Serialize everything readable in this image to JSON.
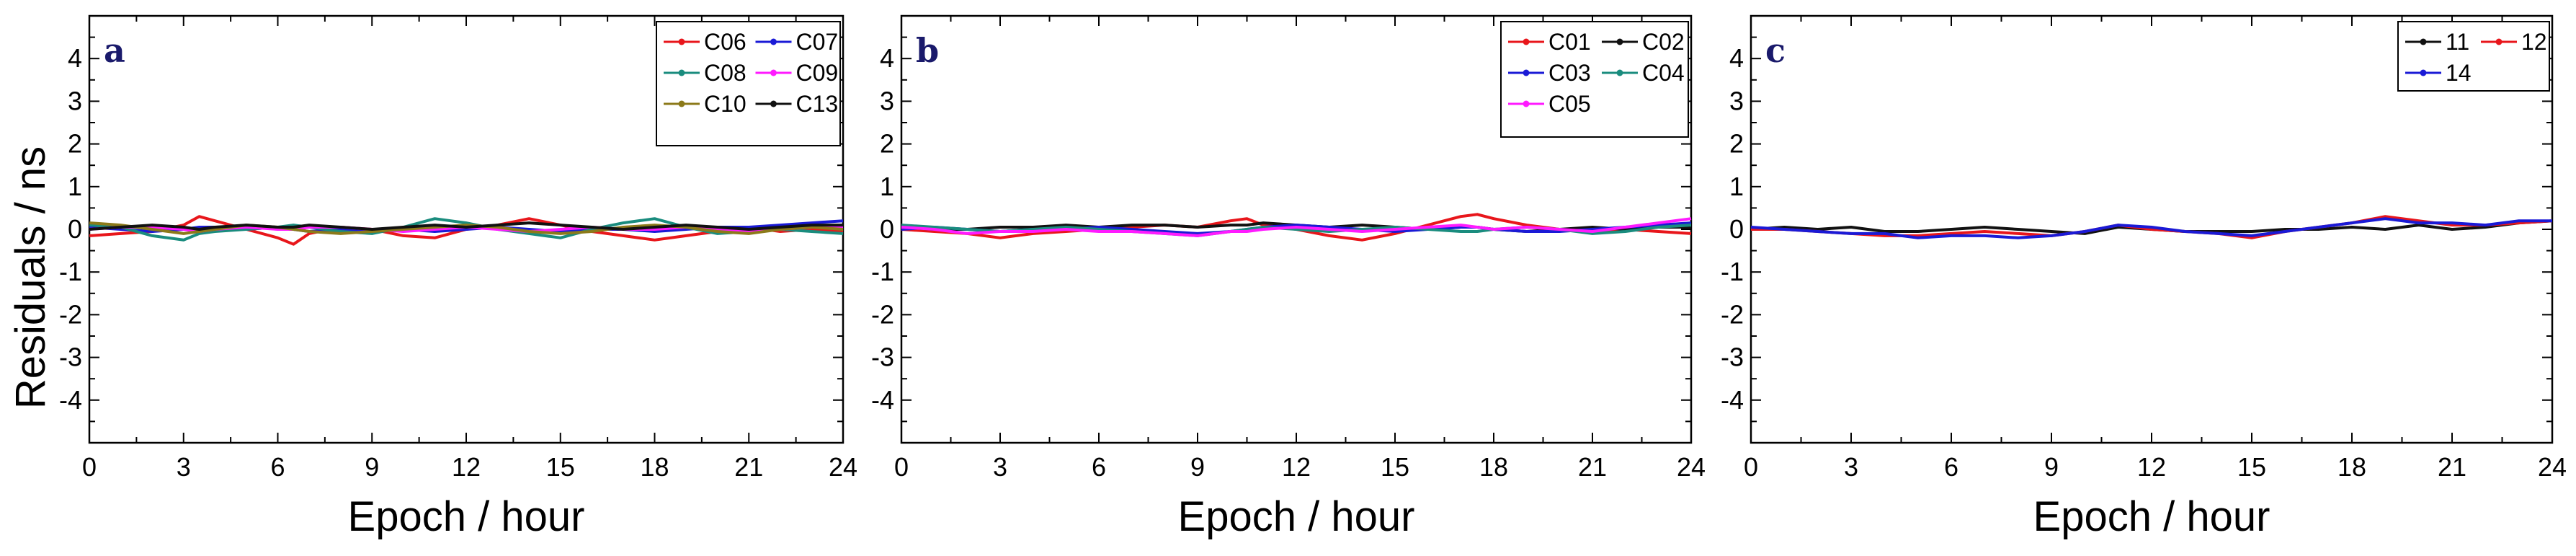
{
  "figure": {
    "ylabel": "Residuals / ns",
    "xlabel": "Epoch / hour"
  },
  "chart_data": [
    {
      "type": "line",
      "panel_label": "a",
      "xlabel": "Epoch / hour",
      "ylabel": "Residuals / ns",
      "xlim": [
        0,
        24
      ],
      "ylim": [
        -5,
        5
      ],
      "xticks": [
        "0",
        "3",
        "6",
        "9",
        "12",
        "15",
        "18",
        "21",
        "24"
      ],
      "yticks": [
        "-4",
        "-3",
        "-2",
        "-1",
        "0",
        "1",
        "2",
        "3",
        "4"
      ],
      "legend_placement": "top-right",
      "legend_columns": 2,
      "x": [
        0,
        1,
        2,
        3,
        3.5,
        4,
        5,
        6,
        6.5,
        7,
        8,
        9,
        10,
        11,
        12,
        13,
        14,
        15,
        16,
        17,
        18,
        19,
        20,
        21,
        22,
        23,
        24
      ],
      "series": [
        {
          "name": "C06",
          "color": "#e8161b",
          "values": [
            -0.15,
            -0.1,
            -0.05,
            0.1,
            0.3,
            0.2,
            0.0,
            -0.2,
            -0.35,
            -0.1,
            0.05,
            0.0,
            -0.15,
            -0.2,
            0.0,
            0.1,
            0.25,
            0.1,
            -0.05,
            -0.15,
            -0.25,
            -0.15,
            -0.05,
            0.05,
            -0.05,
            0.0,
            -0.05
          ]
        },
        {
          "name": "C07",
          "color": "#1a1ad6",
          "values": [
            0.05,
            0.0,
            -0.05,
            0.0,
            0.05,
            0.05,
            0.0,
            0.05,
            0.0,
            -0.05,
            0.0,
            -0.05,
            0.0,
            -0.05,
            0.0,
            0.05,
            0.0,
            -0.05,
            0.0,
            0.0,
            -0.05,
            0.0,
            0.05,
            0.05,
            0.1,
            0.15,
            0.2
          ]
        },
        {
          "name": "C08",
          "color": "#1a8c7e",
          "values": [
            0.1,
            0.05,
            -0.15,
            -0.25,
            -0.1,
            -0.05,
            0.0,
            0.05,
            0.1,
            0.05,
            -0.05,
            -0.1,
            0.05,
            0.25,
            0.15,
            0.0,
            -0.1,
            -0.2,
            0.0,
            0.15,
            0.25,
            0.05,
            -0.1,
            -0.05,
            0.0,
            -0.05,
            -0.1
          ]
        },
        {
          "name": "C09",
          "color": "#ff1aff",
          "values": [
            0.0,
            0.05,
            0.05,
            0.0,
            -0.05,
            0.0,
            0.05,
            0.0,
            0.0,
            0.05,
            0.05,
            0.0,
            -0.05,
            0.0,
            0.05,
            0.0,
            -0.05,
            0.0,
            0.05,
            0.0,
            0.0,
            0.05,
            0.0,
            -0.05,
            0.0,
            0.05,
            0.05
          ]
        },
        {
          "name": "C10",
          "color": "#8c7a1a",
          "values": [
            0.15,
            0.1,
            0.0,
            -0.1,
            -0.05,
            0.0,
            0.1,
            0.05,
            0.0,
            -0.05,
            -0.1,
            -0.05,
            0.0,
            0.05,
            0.1,
            0.05,
            -0.05,
            -0.1,
            -0.05,
            0.05,
            0.1,
            0.05,
            -0.05,
            -0.1,
            0.0,
            0.05,
            0.0
          ]
        },
        {
          "name": "C13",
          "color": "#111111",
          "values": [
            0.0,
            0.05,
            0.1,
            0.05,
            0.0,
            0.05,
            0.1,
            0.05,
            0.05,
            0.1,
            0.05,
            0.0,
            0.05,
            0.1,
            0.05,
            0.1,
            0.15,
            0.1,
            0.05,
            0.0,
            0.05,
            0.1,
            0.05,
            0.0,
            0.05,
            0.1,
            0.1
          ]
        }
      ]
    },
    {
      "type": "line",
      "panel_label": "b",
      "xlabel": "Epoch / hour",
      "ylabel": "Residuals / ns",
      "xlim": [
        0,
        24
      ],
      "ylim": [
        -5,
        5
      ],
      "xticks": [
        "0",
        "3",
        "6",
        "9",
        "12",
        "15",
        "18",
        "21",
        "24"
      ],
      "yticks": [
        "-4",
        "-3",
        "-2",
        "-1",
        "0",
        "1",
        "2",
        "3",
        "4"
      ],
      "legend_placement": "top-right",
      "legend_columns": 2,
      "x": [
        0,
        1,
        2,
        3,
        4,
        5,
        6,
        7,
        8,
        9,
        10,
        10.5,
        11,
        12,
        13,
        14,
        15,
        16,
        17,
        17.5,
        18,
        19,
        20,
        21,
        22,
        23,
        24
      ],
      "series": [
        {
          "name": "C01",
          "color": "#e8161b",
          "values": [
            0.0,
            -0.05,
            -0.1,
            -0.2,
            -0.1,
            -0.05,
            0.0,
            0.05,
            0.1,
            0.05,
            0.2,
            0.25,
            0.1,
            0.0,
            -0.15,
            -0.25,
            -0.1,
            0.1,
            0.3,
            0.35,
            0.25,
            0.1,
            0.0,
            -0.05,
            0.0,
            -0.05,
            -0.1
          ]
        },
        {
          "name": "C02",
          "color": "#111111",
          "values": [
            0.05,
            0.0,
            0.0,
            0.05,
            0.05,
            0.1,
            0.05,
            0.1,
            0.1,
            0.05,
            0.1,
            0.1,
            0.15,
            0.1,
            0.05,
            0.1,
            0.05,
            0.0,
            0.05,
            0.05,
            0.0,
            -0.05,
            0.0,
            0.05,
            0.0,
            0.05,
            0.05
          ]
        },
        {
          "name": "C03",
          "color": "#1a1ad6",
          "values": [
            0.0,
            0.05,
            0.0,
            -0.05,
            0.0,
            0.0,
            0.05,
            0.0,
            -0.05,
            -0.1,
            -0.05,
            0.0,
            0.05,
            0.1,
            0.05,
            0.0,
            -0.05,
            0.0,
            0.05,
            0.05,
            0.0,
            -0.05,
            -0.05,
            0.0,
            0.05,
            0.1,
            0.15
          ]
        },
        {
          "name": "C04",
          "color": "#1a8c7e",
          "values": [
            0.1,
            0.05,
            0.0,
            -0.05,
            0.0,
            0.05,
            0.0,
            -0.05,
            -0.1,
            -0.15,
            -0.05,
            0.0,
            0.05,
            0.0,
            -0.05,
            0.0,
            0.05,
            0.0,
            -0.05,
            -0.05,
            0.0,
            0.05,
            0.0,
            -0.1,
            -0.05,
            0.05,
            0.1
          ]
        },
        {
          "name": "C05",
          "color": "#ff1aff",
          "values": [
            0.05,
            0.0,
            -0.1,
            -0.05,
            -0.05,
            0.0,
            -0.05,
            -0.05,
            -0.1,
            -0.15,
            -0.05,
            -0.05,
            0.0,
            0.05,
            0.0,
            -0.05,
            0.0,
            0.05,
            0.1,
            0.05,
            0.0,
            0.05,
            0.0,
            -0.05,
            0.05,
            0.15,
            0.25
          ]
        }
      ]
    },
    {
      "type": "line",
      "panel_label": "c",
      "xlabel": "Epoch / hour",
      "ylabel": "Residuals / ns",
      "xlim": [
        0,
        24
      ],
      "ylim": [
        -5,
        5
      ],
      "xticks": [
        "0",
        "3",
        "6",
        "9",
        "12",
        "15",
        "18",
        "21",
        "24"
      ],
      "yticks": [
        "-4",
        "-3",
        "-2",
        "-1",
        "0",
        "1",
        "2",
        "3",
        "4"
      ],
      "legend_placement": "top-right",
      "legend_columns": 2,
      "x": [
        0,
        1,
        2,
        3,
        4,
        5,
        6,
        7,
        8,
        9,
        10,
        11,
        12,
        13,
        14,
        15,
        16,
        17,
        18,
        19,
        20,
        21,
        22,
        23,
        24
      ],
      "series": [
        {
          "name": "11",
          "color": "#111111",
          "values": [
            0.0,
            0.05,
            0.0,
            0.05,
            -0.05,
            -0.05,
            0.0,
            0.05,
            0.0,
            -0.05,
            -0.1,
            0.05,
            0.0,
            -0.05,
            -0.05,
            -0.05,
            0.0,
            0.0,
            0.05,
            0.0,
            0.1,
            0.0,
            0.05,
            0.15,
            0.2
          ]
        },
        {
          "name": "12",
          "color": "#e8161b",
          "values": [
            0.0,
            0.0,
            -0.05,
            -0.1,
            -0.15,
            -0.15,
            -0.1,
            -0.05,
            -0.1,
            -0.15,
            -0.05,
            0.1,
            0.0,
            -0.05,
            -0.1,
            -0.2,
            -0.05,
            0.05,
            0.15,
            0.3,
            0.2,
            0.1,
            0.1,
            0.15,
            0.2
          ]
        },
        {
          "name": "14",
          "color": "#1a1ad6",
          "values": [
            0.05,
            0.0,
            -0.05,
            -0.1,
            -0.1,
            -0.2,
            -0.15,
            -0.15,
            -0.2,
            -0.15,
            -0.05,
            0.1,
            0.05,
            -0.05,
            -0.1,
            -0.15,
            -0.05,
            0.05,
            0.15,
            0.25,
            0.15,
            0.15,
            0.1,
            0.2,
            0.2
          ]
        }
      ]
    }
  ]
}
